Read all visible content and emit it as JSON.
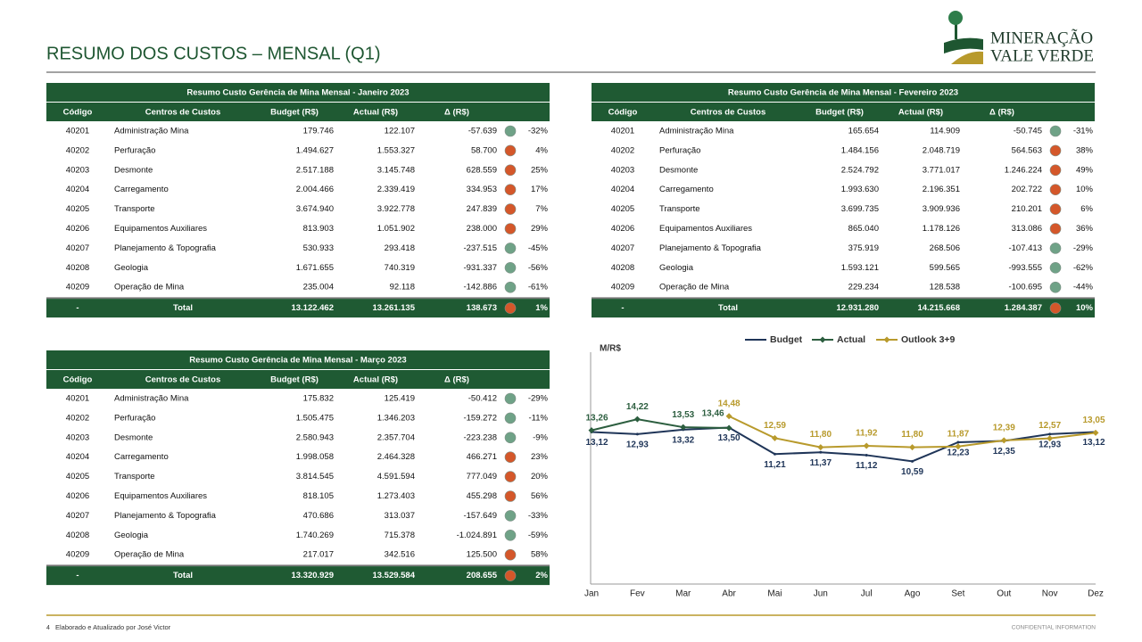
{
  "header": {
    "title": "RESUMO DOS CUSTOS – MENSAL (Q1)",
    "logo": [
      "MINERAÇÃO",
      "VALE VERDE"
    ]
  },
  "tables": [
    {
      "title": "Resumo Custo Gerência de Mina Mensal - Janeiro 2023",
      "columns": [
        "Código",
        "Centros de Custos",
        "Budget (R$)",
        "Actual (R$)",
        "Δ (R$)"
      ],
      "rows": [
        [
          "40201",
          "Administração Mina",
          "179.746",
          "122.107",
          "-57.639",
          "-32%"
        ],
        [
          "40202",
          "Perfuração",
          "1.494.627",
          "1.553.327",
          "58.700",
          "4%"
        ],
        [
          "40203",
          "Desmonte",
          "2.517.188",
          "3.145.748",
          "628.559",
          "25%"
        ],
        [
          "40204",
          "Carregamento",
          "2.004.466",
          "2.339.419",
          "334.953",
          "17%"
        ],
        [
          "40205",
          "Transporte",
          "3.674.940",
          "3.922.778",
          "247.839",
          "7%"
        ],
        [
          "40206",
          "Equipamentos Auxiliares",
          "813.903",
          "1.051.902",
          "238.000",
          "29%"
        ],
        [
          "40207",
          "Planejamento & Topografia",
          "530.933",
          "293.418",
          "-237.515",
          "-45%"
        ],
        [
          "40208",
          "Geologia",
          "1.671.655",
          "740.319",
          "-931.337",
          "-56%"
        ],
        [
          "40209",
          "Operação de Mina",
          "235.004",
          "92.118",
          "-142.886",
          "-61%"
        ]
      ],
      "total": [
        "-",
        "Total",
        "13.122.462",
        "13.261.135",
        "138.673",
        "1%"
      ],
      "dot_colors": [
        "#6fa287",
        "#d4572a",
        "#d4572a",
        "#d4572a",
        "#d4572a",
        "#d4572a",
        "#6fa287",
        "#6fa287",
        "#6fa287",
        "#d4572a"
      ]
    },
    {
      "title": "Resumo Custo Gerência de Mina Mensal - Fevereiro 2023",
      "columns": [
        "Código",
        "Centros de Custos",
        "Budget (R$)",
        "Actual (R$)",
        "Δ (R$)"
      ],
      "rows": [
        [
          "40201",
          "Administração Mina",
          "165.654",
          "114.909",
          "-50.745",
          "-31%"
        ],
        [
          "40202",
          "Perfuração",
          "1.484.156",
          "2.048.719",
          "564.563",
          "38%"
        ],
        [
          "40203",
          "Desmonte",
          "2.524.792",
          "3.771.017",
          "1.246.224",
          "49%"
        ],
        [
          "40204",
          "Carregamento",
          "1.993.630",
          "2.196.351",
          "202.722",
          "10%"
        ],
        [
          "40205",
          "Transporte",
          "3.699.735",
          "3.909.936",
          "210.201",
          "6%"
        ],
        [
          "40206",
          "Equipamentos Auxiliares",
          "865.040",
          "1.178.126",
          "313.086",
          "36%"
        ],
        [
          "40207",
          "Planejamento & Topografia",
          "375.919",
          "268.506",
          "-107.413",
          "-29%"
        ],
        [
          "40208",
          "Geologia",
          "1.593.121",
          "599.565",
          "-993.555",
          "-62%"
        ],
        [
          "40209",
          "Operação de Mina",
          "229.234",
          "128.538",
          "-100.695",
          "-44%"
        ]
      ],
      "total": [
        "-",
        "Total",
        "12.931.280",
        "14.215.668",
        "1.284.387",
        "10%"
      ],
      "dot_colors": [
        "#6fa287",
        "#d4572a",
        "#d4572a",
        "#d4572a",
        "#d4572a",
        "#d4572a",
        "#6fa287",
        "#6fa287",
        "#6fa287",
        "#d4572a"
      ]
    },
    {
      "title": "Resumo Custo Gerência de Mina Mensal - Março 2023",
      "columns": [
        "Código",
        "Centros de Custos",
        "Budget (R$)",
        "Actual (R$)",
        "Δ (R$)"
      ],
      "rows": [
        [
          "40201",
          "Administração Mina",
          "175.832",
          "125.419",
          "-50.412",
          "-29%"
        ],
        [
          "40202",
          "Perfuração",
          "1.505.475",
          "1.346.203",
          "-159.272",
          "-11%"
        ],
        [
          "40203",
          "Desmonte",
          "2.580.943",
          "2.357.704",
          "-223.238",
          "-9%"
        ],
        [
          "40204",
          "Carregamento",
          "1.998.058",
          "2.464.328",
          "466.271",
          "23%"
        ],
        [
          "40205",
          "Transporte",
          "3.814.545",
          "4.591.594",
          "777.049",
          "20%"
        ],
        [
          "40206",
          "Equipamentos Auxiliares",
          "818.105",
          "1.273.403",
          "455.298",
          "56%"
        ],
        [
          "40207",
          "Planejamento & Topografia",
          "470.686",
          "313.037",
          "-157.649",
          "-33%"
        ],
        [
          "40208",
          "Geologia",
          "1.740.269",
          "715.378",
          "-1.024.891",
          "-59%"
        ],
        [
          "40209",
          "Operação de Mina",
          "217.017",
          "342.516",
          "125.500",
          "58%"
        ]
      ],
      "total": [
        "-",
        "Total",
        "13.320.929",
        "13.529.584",
        "208.655",
        "2%"
      ],
      "dot_colors": [
        "#6fa287",
        "#6fa287",
        "#6fa287",
        "#d4572a",
        "#d4572a",
        "#d4572a",
        "#6fa287",
        "#6fa287",
        "#d4572a",
        "#d4572a"
      ]
    }
  ],
  "chart_data": {
    "type": "line",
    "ylabel": "M/R$",
    "categories": [
      "Jan",
      "Fev",
      "Mar",
      "Abr",
      "Mai",
      "Jun",
      "Jul",
      "Ago",
      "Set",
      "Out",
      "Nov",
      "Dez"
    ],
    "ylim": [
      0,
      20
    ],
    "series": [
      {
        "name": "Budget",
        "color": "#1f3558",
        "marker": "none",
        "values": [
          13.12,
          12.93,
          13.32,
          13.5,
          11.21,
          11.37,
          11.12,
          10.59,
          12.23,
          12.35,
          12.93,
          13.12
        ],
        "value_labels": [
          "13,12",
          "12,93",
          "13,32",
          "13,50",
          "11,21",
          "11,37",
          "11,12",
          "10,59",
          "12,23",
          "12,35",
          "12,93",
          "13,12"
        ]
      },
      {
        "name": "Actual",
        "color": "#2c5e3f",
        "marker": "diamond",
        "values": [
          13.26,
          14.22,
          13.53,
          13.46,
          null,
          null,
          null,
          null,
          null,
          null,
          null,
          null
        ],
        "value_labels": [
          "13,26",
          "14,22",
          "13,53",
          "13,46",
          null,
          null,
          null,
          null,
          null,
          null,
          null,
          null
        ]
      },
      {
        "name": "Outlook 3+9",
        "color": "#b89a2c",
        "marker": "diamond",
        "values": [
          null,
          null,
          null,
          14.48,
          12.59,
          11.8,
          11.92,
          11.8,
          11.87,
          12.39,
          12.57,
          13.05
        ],
        "value_labels": [
          null,
          null,
          null,
          "14,48",
          "12,59",
          "11,80",
          "11,92",
          "11,80",
          "11,87",
          "12,39",
          "12,57",
          "13,05"
        ]
      }
    ],
    "legend": "top"
  },
  "footer": {
    "page": "4",
    "note": "Elaborado e Atualizado por José Victor",
    "confidential": "CONFIDENTIAL INFORMATION"
  }
}
